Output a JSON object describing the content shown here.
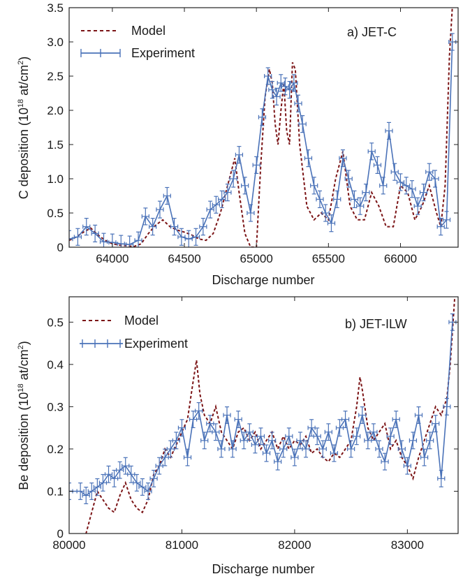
{
  "colors": {
    "model": "#7b1416",
    "experiment": "#4a72b8",
    "axis": "#222222"
  },
  "chart_data": [
    {
      "type": "line",
      "annotation": "a) JET-C",
      "xlabel": "Discharge number",
      "ylabel": {
        "pre": "C deposition (10",
        "sup": "18",
        "mid": " at/cm",
        "sup2": "2",
        "post": ")"
      },
      "xlim": [
        63700,
        66400
      ],
      "ylim": [
        0,
        3.5
      ],
      "xticks": [
        64000,
        64500,
        65000,
        65500,
        66000
      ],
      "yticks": [
        "0",
        "0.5",
        "1.0",
        "1.5",
        "2.0",
        "2.5",
        "3.0",
        "3.5"
      ],
      "legend": [
        "Model",
        "Experiment"
      ],
      "series": [
        {
          "name": "Model",
          "style": "dashed",
          "x": [
            63700,
            63750,
            63800,
            63850,
            63900,
            63950,
            64000,
            64050,
            64100,
            64150,
            64200,
            64250,
            64300,
            64350,
            64400,
            64450,
            64500,
            64550,
            64600,
            64650,
            64700,
            64750,
            64800,
            64850,
            64880,
            64920,
            64960,
            65000,
            65030,
            65060,
            65090,
            65110,
            65130,
            65150,
            65170,
            65190,
            65210,
            65230,
            65250,
            65270,
            65300,
            65350,
            65400,
            65450,
            65500,
            65550,
            65600,
            65650,
            65700,
            65750,
            65800,
            65850,
            65900,
            65950,
            66000,
            66050,
            66100,
            66150,
            66200,
            66250,
            66280,
            66310,
            66340,
            66360
          ],
          "y": [
            0.1,
            0.15,
            0.22,
            0.28,
            0.18,
            0.1,
            0.05,
            0.03,
            0.02,
            0.01,
            0.05,
            0.2,
            0.32,
            0.4,
            0.3,
            0.25,
            0.22,
            0.18,
            0.12,
            0.1,
            0.2,
            0.5,
            0.9,
            1.3,
            0.8,
            0.2,
            0.0,
            0.0,
            1.2,
            2.2,
            2.6,
            2.4,
            1.8,
            1.5,
            2.0,
            2.4,
            1.7,
            1.5,
            2.7,
            2.6,
            1.5,
            0.6,
            0.4,
            0.5,
            0.4,
            1.0,
            1.4,
            0.6,
            0.4,
            0.4,
            0.8,
            0.6,
            0.3,
            0.3,
            0.9,
            0.8,
            0.4,
            0.6,
            0.9,
            0.5,
            0.3,
            0.9,
            2.8,
            3.5
          ]
        },
        {
          "name": "Experiment",
          "style": "solid-errorbar",
          "x": [
            63700,
            63760,
            63820,
            63880,
            63940,
            64000,
            64060,
            64120,
            64180,
            64230,
            64280,
            64330,
            64380,
            64430,
            64480,
            64530,
            64580,
            64630,
            64680,
            64720,
            64760,
            64800,
            64840,
            64880,
            64920,
            64960,
            65000,
            65040,
            65080,
            65110,
            65140,
            65170,
            65200,
            65230,
            65260,
            65290,
            65320,
            65360,
            65400,
            65440,
            65480,
            65520,
            65560,
            65600,
            65640,
            65680,
            65720,
            65760,
            65800,
            65840,
            65880,
            65920,
            65960,
            66000,
            66040,
            66080,
            66120,
            66160,
            66200,
            66240,
            66280,
            66320,
            66360
          ],
          "y": [
            0.12,
            0.15,
            0.3,
            0.2,
            0.08,
            0.07,
            0.05,
            0.04,
            0.1,
            0.45,
            0.3,
            0.55,
            0.75,
            0.3,
            0.15,
            0.12,
            0.15,
            0.3,
            0.55,
            0.62,
            0.7,
            0.8,
            1.0,
            1.35,
            0.9,
            0.5,
            1.2,
            1.9,
            2.5,
            2.3,
            2.2,
            2.4,
            2.35,
            2.3,
            2.4,
            2.1,
            1.8,
            1.3,
            0.9,
            0.7,
            0.5,
            0.35,
            0.7,
            1.3,
            1.0,
            0.7,
            0.6,
            0.8,
            1.4,
            1.2,
            0.9,
            1.7,
            1.1,
            0.95,
            0.9,
            0.85,
            0.6,
            0.8,
            1.1,
            1.0,
            0.3,
            0.4,
            3.0
          ]
        }
      ]
    },
    {
      "type": "line",
      "annotation": "b) JET-ILW",
      "xlabel": "Discharge number",
      "ylabel": {
        "pre": "Be deposition (10",
        "sup": "18",
        "mid": " at/cm",
        "sup2": "2",
        "post": ")"
      },
      "xlim": [
        80000,
        83450
      ],
      "ylim": [
        0,
        0.56
      ],
      "xticks": [
        80000,
        81000,
        82000,
        83000
      ],
      "yticks": [
        "0",
        "0.1",
        "0.2",
        "0.3",
        "0.4",
        "0.5"
      ],
      "legend": [
        "Model",
        "Experiment"
      ],
      "series": [
        {
          "name": "Model",
          "style": "dashed",
          "x": [
            80100,
            80150,
            80200,
            80250,
            80300,
            80350,
            80400,
            80450,
            80500,
            80550,
            80600,
            80650,
            80700,
            80750,
            80800,
            80850,
            80900,
            80950,
            81000,
            81050,
            81100,
            81130,
            81160,
            81200,
            81250,
            81300,
            81350,
            81400,
            81450,
            81500,
            81550,
            81600,
            81650,
            81700,
            81750,
            81800,
            81850,
            81900,
            81950,
            82000,
            82050,
            82100,
            82150,
            82200,
            82250,
            82300,
            82350,
            82400,
            82450,
            82500,
            82550,
            82580,
            82600,
            82650,
            82700,
            82750,
            82800,
            82850,
            82900,
            82950,
            83000,
            83050,
            83100,
            83150,
            83200,
            83250,
            83300,
            83350,
            83380,
            83420
          ],
          "y": [
            -0.02,
            0.0,
            0.05,
            0.1,
            0.08,
            0.06,
            0.05,
            0.09,
            0.12,
            0.08,
            0.06,
            0.05,
            0.08,
            0.14,
            0.16,
            0.2,
            0.18,
            0.21,
            0.24,
            0.27,
            0.36,
            0.41,
            0.33,
            0.28,
            0.26,
            0.3,
            0.24,
            0.22,
            0.2,
            0.24,
            0.25,
            0.22,
            0.24,
            0.2,
            0.22,
            0.24,
            0.2,
            0.23,
            0.2,
            0.22,
            0.21,
            0.23,
            0.19,
            0.2,
            0.18,
            0.17,
            0.19,
            0.18,
            0.2,
            0.22,
            0.3,
            0.37,
            0.34,
            0.25,
            0.22,
            0.24,
            0.26,
            0.2,
            0.22,
            0.18,
            0.16,
            0.13,
            0.18,
            0.22,
            0.26,
            0.3,
            0.28,
            0.32,
            0.4,
            0.56
          ]
        },
        {
          "name": "Experiment",
          "style": "solid-errorbar",
          "x": [
            80000,
            80100,
            80150,
            80200,
            80250,
            80300,
            80350,
            80400,
            80450,
            80500,
            80550,
            80600,
            80650,
            80700,
            80750,
            80800,
            80850,
            80900,
            80950,
            81000,
            81050,
            81100,
            81150,
            81200,
            81250,
            81300,
            81350,
            81400,
            81450,
            81500,
            81550,
            81600,
            81650,
            81700,
            81750,
            81800,
            81850,
            81900,
            81950,
            82000,
            82050,
            82100,
            82150,
            82200,
            82250,
            82300,
            82350,
            82400,
            82450,
            82500,
            82550,
            82600,
            82650,
            82700,
            82750,
            82800,
            82850,
            82900,
            82950,
            83000,
            83050,
            83100,
            83150,
            83200,
            83250,
            83300,
            83350,
            83400
          ],
          "y": [
            0.1,
            0.1,
            0.09,
            0.1,
            0.11,
            0.12,
            0.14,
            0.13,
            0.15,
            0.16,
            0.14,
            0.12,
            0.11,
            0.1,
            0.13,
            0.16,
            0.18,
            0.2,
            0.22,
            0.25,
            0.18,
            0.27,
            0.29,
            0.22,
            0.26,
            0.24,
            0.2,
            0.28,
            0.2,
            0.27,
            0.22,
            0.24,
            0.21,
            0.23,
            0.19,
            0.22,
            0.17,
            0.2,
            0.23,
            0.18,
            0.22,
            0.2,
            0.25,
            0.23,
            0.2,
            0.24,
            0.19,
            0.25,
            0.27,
            0.2,
            0.23,
            0.28,
            0.22,
            0.24,
            0.2,
            0.17,
            0.23,
            0.27,
            0.2,
            0.16,
            0.22,
            0.28,
            0.18,
            0.22,
            0.26,
            0.13,
            0.3,
            0.5
          ]
        }
      ]
    }
  ]
}
